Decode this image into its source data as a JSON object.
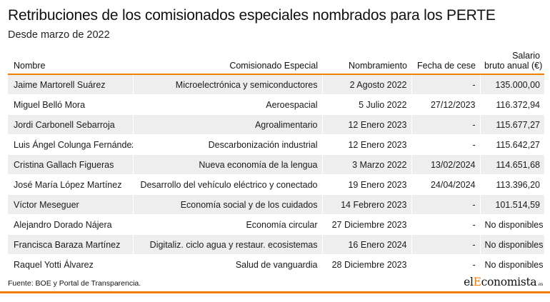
{
  "header": {
    "title": "Retribuciones de los comisionados especiales nombrados para los PERTE",
    "subtitle": "Desde marzo de 2022"
  },
  "table": {
    "columns": {
      "name": "Nombre",
      "commission": "Comisionado Especial",
      "appointment": "Nombramiento",
      "end_date": "Fecha de cese",
      "salary_line1": "Salario",
      "salary_line2": "bruto anual (€)"
    },
    "rows": [
      {
        "name": "Jaime Martorell Suárez",
        "commission": "Microelectrónica y semiconductores",
        "appointment": "2 Agosto 2022",
        "end_date": "-",
        "salary": "135.000,00"
      },
      {
        "name": "Miguel Belló Mora",
        "commission": "Aeroespacial",
        "appointment": "5 Julio 2022",
        "end_date": "27/12/2023",
        "salary": "116.372,94"
      },
      {
        "name": "Jordi Carbonell Sebarroja",
        "commission": "Agroalimentario",
        "appointment": "12 Enero 2023",
        "end_date": "-",
        "salary": "115.677,27"
      },
      {
        "name": "Luis Ángel Colunga Fernández",
        "commission": "Descarbonización industrial",
        "appointment": "12 Enero 2023",
        "end_date": "-",
        "salary": "115.642,27"
      },
      {
        "name": "Cristina Gallach Figueras",
        "commission": "Nueva economía de la lengua",
        "appointment": "3 Marzo 2022",
        "end_date": "13/02/2024",
        "salary": "114.651,68"
      },
      {
        "name": "José María López Martínez",
        "commission": "Desarrollo del vehículo eléctrico y conectado",
        "appointment": "19 Enero 2023",
        "end_date": "24/04/2024",
        "salary": "113.396,20"
      },
      {
        "name": "Víctor Meseguer",
        "commission": "Economía social y de los cuidados",
        "appointment": "14 Febrero 2023",
        "end_date": "-",
        "salary": "101.514,59"
      },
      {
        "name": "Alejandro Dorado Nájera",
        "commission": "Economía circular",
        "appointment": "27 Diciembre 2023",
        "end_date": "-",
        "salary": "No disponibles"
      },
      {
        "name": "Francisca Baraza Martínez",
        "commission": "Digitaliz. ciclo agua y restaur. ecosistemas",
        "appointment": "16 Enero 2024",
        "end_date": "-",
        "salary": "No disponibles"
      },
      {
        "name": "Raquel Yotti Álvarez",
        "commission": "Salud de vanguardia",
        "appointment": "28 Diciembre 2023",
        "end_date": "-",
        "salary": "No disponibles"
      }
    ]
  },
  "footer": {
    "source": "Fuente: BOE y Portal de Transparencia.",
    "logo_part1": "el",
    "logo_accent": "E",
    "logo_part2": "conomista",
    "logo_suffix": ".es"
  },
  "colors": {
    "accent": "#f07d00",
    "row_shade": "#eeeeee"
  }
}
